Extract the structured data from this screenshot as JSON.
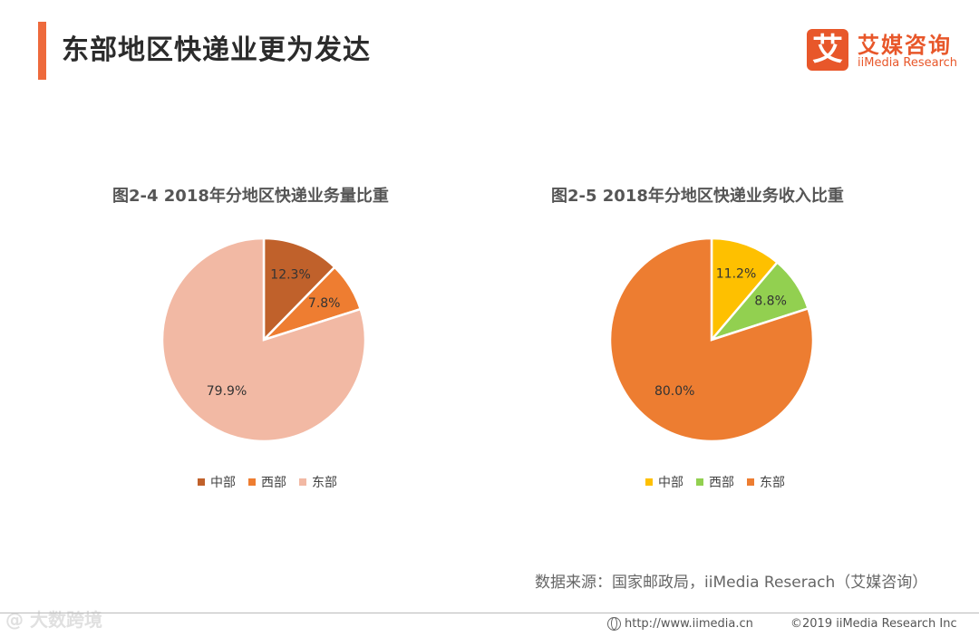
{
  "header": {
    "title": "东部地区快递业更为发达",
    "accent_color": "#ee6a3c"
  },
  "logo": {
    "mark": "艾",
    "name_cn": "艾媒咨询",
    "name_en": "iiMedia Research",
    "color": "#e8572a"
  },
  "chart_data": [
    {
      "type": "pie",
      "title": "图2-4  2018年分地区快递业务量比重",
      "categories": [
        "中部",
        "西部",
        "东部"
      ],
      "values": [
        12.3,
        7.8,
        79.9
      ],
      "labels": [
        "12.3%",
        "7.8%",
        "79.9%"
      ],
      "colors": [
        "#c0612b",
        "#ee7d31",
        "#f2b9a4"
      ],
      "legend_position": "bottom"
    },
    {
      "type": "pie",
      "title": "图2-5  2018年分地区快递业务收入比重",
      "categories": [
        "中部",
        "西部",
        "东部"
      ],
      "values": [
        11.2,
        8.8,
        80.0
      ],
      "labels": [
        "11.2%",
        "8.8%",
        "80.0%"
      ],
      "colors": [
        "#fec000",
        "#92d050",
        "#ed7d31"
      ],
      "legend_position": "bottom"
    }
  ],
  "source": "数据来源：国家邮政局，iiMedia Reserach（艾媒咨询）",
  "footer": {
    "watermark": "@ 大数跨境",
    "url": "http://www.iimedia.cn",
    "copyright": "©2019  iiMedia Research  Inc"
  }
}
